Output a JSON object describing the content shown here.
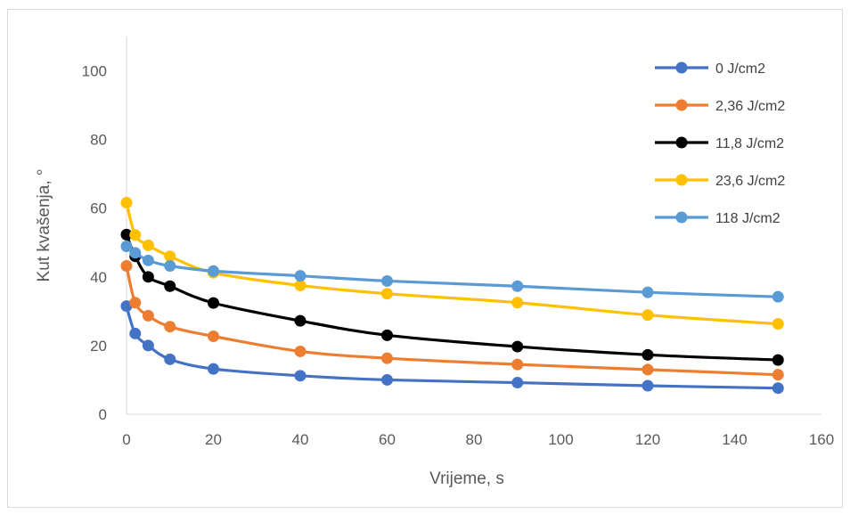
{
  "chart_data": {
    "type": "line",
    "xlabel": "Vrijeme, s",
    "ylabel": "Kut kvašenja, °",
    "xlim": [
      0,
      160
    ],
    "ylim": [
      0,
      110
    ],
    "x_ticks": [
      "0",
      "20",
      "40",
      "60",
      "80",
      "100",
      "120",
      "140",
      "160"
    ],
    "y_ticks": [
      "0",
      "20",
      "40",
      "60",
      "80",
      "100"
    ],
    "grid": false,
    "legend_position": "right",
    "x": [
      0,
      2,
      5,
      10,
      20,
      40,
      60,
      90,
      120,
      150
    ],
    "series": [
      {
        "name": "0 J/cm2",
        "color": "#4472c4",
        "values": [
          31.5,
          23.5,
          20,
          16,
          13.2,
          11.2,
          10,
          9.2,
          8.3,
          7.6
        ]
      },
      {
        "name": "2,36 J/cm2",
        "color": "#ed7d31",
        "values": [
          43.2,
          32.5,
          28.7,
          25.5,
          22.7,
          18.3,
          16.3,
          14.5,
          13,
          11.5
        ]
      },
      {
        "name": "11,8 J/cm2",
        "color": "#000000",
        "values": [
          52.3,
          46,
          40,
          37.3,
          32.4,
          27.2,
          23,
          19.7,
          17.3,
          15.8
        ]
      },
      {
        "name": "23,6 J/cm2",
        "color": "#ffc000",
        "values": [
          61.6,
          52.2,
          49.2,
          46,
          41.2,
          37.5,
          35.1,
          32.5,
          28.9,
          26.3
        ]
      },
      {
        "name": "118 J/cm2",
        "color": "#5b9bd5",
        "values": [
          48.9,
          47,
          44.8,
          43.2,
          41.7,
          40.3,
          38.8,
          37.3,
          35.5,
          34.2
        ]
      }
    ]
  }
}
